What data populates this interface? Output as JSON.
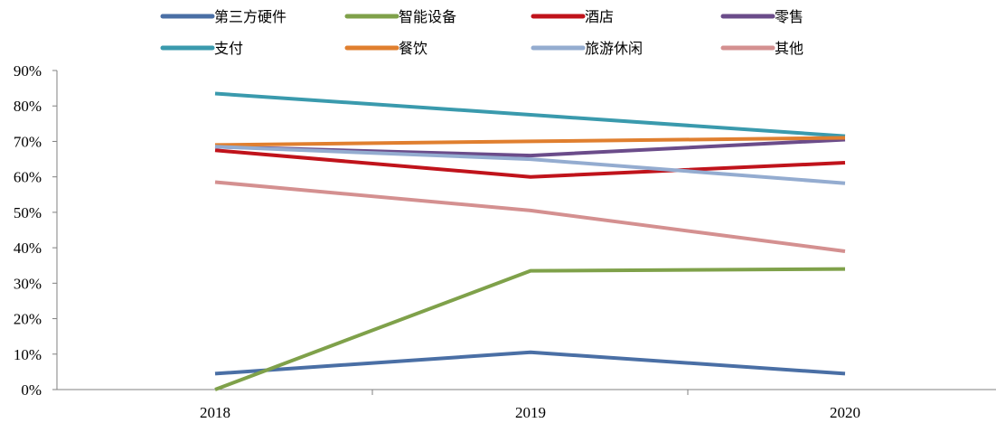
{
  "chart_data": {
    "type": "line",
    "title": "",
    "xlabel": "",
    "ylabel": "",
    "categories": [
      "2018",
      "2019",
      "2020"
    ],
    "y_ticks": [
      "0%",
      "10%",
      "20%",
      "30%",
      "40%",
      "50%",
      "60%",
      "70%",
      "80%",
      "90%"
    ],
    "ylim": [
      0,
      90
    ],
    "grid": false,
    "legend_position": "top",
    "series": [
      {
        "name": "第三方硬件",
        "color": "#4a6fa5",
        "values": [
          4.5,
          10.5,
          4.5
        ]
      },
      {
        "name": "智能设备",
        "color": "#7fa14a",
        "values": [
          0,
          33.5,
          34
        ]
      },
      {
        "name": "酒店",
        "color": "#c0131b",
        "values": [
          67.5,
          60,
          64
        ]
      },
      {
        "name": "零售",
        "color": "#6b4c8a",
        "values": [
          68.5,
          66,
          70.5
        ]
      },
      {
        "name": "支付",
        "color": "#3a9aad",
        "values": [
          83.5,
          77.5,
          71.5
        ]
      },
      {
        "name": "餐饮",
        "color": "#e07f2f",
        "values": [
          69,
          70,
          71
        ]
      },
      {
        "name": "旅游休闲",
        "color": "#94acd0",
        "values": [
          68.5,
          65,
          58.2
        ]
      },
      {
        "name": "其他",
        "color": "#d49090",
        "values": [
          58.5,
          50.5,
          39
        ]
      }
    ]
  }
}
